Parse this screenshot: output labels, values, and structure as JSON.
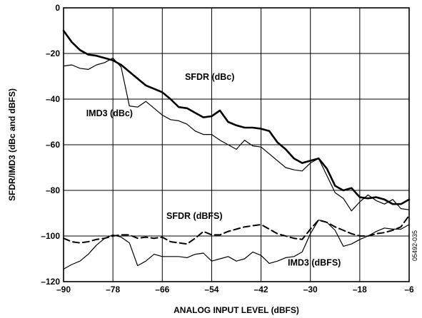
{
  "chart_data": {
    "type": "line",
    "title": "",
    "xlabel": "ANALOG INPUT LEVEL (dBFS)",
    "ylabel": "SFDR/IMD3 (dBc and dBFS)",
    "xlim": [
      -90,
      -6
    ],
    "ylim": [
      -120,
      0
    ],
    "x_ticks": [
      -90,
      -78,
      -66,
      -54,
      -42,
      -30,
      -18,
      -6
    ],
    "y_ticks": [
      0,
      -20,
      -40,
      -60,
      -80,
      -100,
      -120
    ],
    "grid": true,
    "figure_id": "05492-035",
    "series": [
      {
        "name": "SFDR (dBc)",
        "style": "thick-solid",
        "x": [
          -90,
          -88,
          -86,
          -84,
          -82,
          -80,
          -78,
          -76,
          -74,
          -72,
          -70,
          -68,
          -66,
          -64,
          -62,
          -60,
          -58,
          -56,
          -54,
          -52,
          -50,
          -48,
          -46,
          -44,
          -42,
          -40,
          -38,
          -36,
          -34,
          -32,
          -30,
          -28,
          -26,
          -24,
          -22,
          -20,
          -18,
          -16,
          -14,
          -12,
          -10,
          -8,
          -6
        ],
        "y": [
          -10,
          -15,
          -18.5,
          -20.5,
          -21,
          -22,
          -23,
          -25,
          -28,
          -31,
          -34,
          -35.5,
          -37,
          -40,
          -43.5,
          -44,
          -46,
          -48,
          -47.5,
          -45,
          -50,
          -51.5,
          -52.5,
          -52.5,
          -53,
          -54,
          -59,
          -62,
          -66,
          -68,
          -67,
          -66,
          -70.5,
          -78,
          -80,
          -79,
          -83,
          -83.5,
          -83,
          -84,
          -86,
          -86,
          -84
        ]
      },
      {
        "name": "IMD3 (dBc)",
        "style": "thin-solid",
        "x": [
          -90,
          -88,
          -86,
          -84,
          -82,
          -80,
          -78,
          -76,
          -74,
          -72,
          -70,
          -68,
          -66,
          -64,
          -62,
          -60,
          -58,
          -56,
          -54,
          -52,
          -50,
          -48,
          -46,
          -44,
          -42,
          -40,
          -38,
          -36,
          -34,
          -32,
          -30,
          -28,
          -26,
          -24,
          -22,
          -20,
          -18,
          -16,
          -14,
          -12,
          -10,
          -8,
          -6
        ],
        "y": [
          -25.5,
          -25,
          -26.5,
          -27,
          -25,
          -24,
          -22,
          -26,
          -43,
          -43.5,
          -41,
          -44,
          -47,
          -49,
          -49.5,
          -51,
          -54,
          -55.5,
          -55.5,
          -58,
          -60,
          -62,
          -58,
          -60.5,
          -61,
          -64,
          -67,
          -70,
          -71,
          -71.5,
          -68,
          -66,
          -73.5,
          -81,
          -83.5,
          -89,
          -85,
          -82,
          -84.5,
          -86,
          -84,
          -88,
          -88.5
        ]
      },
      {
        "name": "SFDR (dBFS)",
        "style": "dashed",
        "x": [
          -90,
          -88,
          -86,
          -84,
          -82,
          -80,
          -78,
          -76,
          -74,
          -72,
          -70,
          -68,
          -66,
          -64,
          -62,
          -60,
          -58,
          -56,
          -54,
          -52,
          -50,
          -48,
          -46,
          -44,
          -42,
          -40,
          -38,
          -36,
          -34,
          -32,
          -30,
          -28,
          -26,
          -24,
          -22,
          -20,
          -18,
          -16,
          -14,
          -12,
          -10,
          -8,
          -6
        ],
        "y": [
          -101,
          -102.5,
          -103,
          -102.5,
          -101.5,
          -101,
          -100,
          -99.5,
          -99.5,
          -101,
          -100.5,
          -101,
          -100.5,
          -102.5,
          -103,
          -103.5,
          -101,
          -98,
          -99.5,
          -99.5,
          -98,
          -97,
          -96,
          -95.5,
          -95,
          -97,
          -99,
          -100,
          -101,
          -101.5,
          -97,
          -93,
          -94,
          -96,
          -97.5,
          -99,
          -100,
          -100,
          -99,
          -98.5,
          -97.5,
          -96,
          -91
        ]
      },
      {
        "name": "IMD3 (dBFS)",
        "style": "thin-solid",
        "x": [
          -90,
          -88,
          -86,
          -84,
          -82,
          -80,
          -78,
          -76,
          -74,
          -72,
          -70,
          -68,
          -66,
          -64,
          -62,
          -60,
          -58,
          -56,
          -54,
          -52,
          -50,
          -48,
          -46,
          -44,
          -42,
          -40,
          -38,
          -36,
          -34,
          -32,
          -30,
          -28,
          -26,
          -24,
          -22,
          -20,
          -18,
          -16,
          -14,
          -12,
          -10,
          -8,
          -6
        ],
        "y": [
          -114.5,
          -112.5,
          -111,
          -108,
          -104,
          -101,
          -99.5,
          -100.5,
          -103,
          -113,
          -111,
          -108,
          -109,
          -109,
          -109,
          -109.5,
          -108,
          -107.5,
          -111,
          -110,
          -109,
          -111,
          -110,
          -107,
          -108.5,
          -112,
          -111,
          -109.5,
          -109,
          -107,
          -99,
          -93,
          -94,
          -97.5,
          -104.5,
          -103.5,
          -101.5,
          -100,
          -98,
          -96.5,
          -97,
          -97,
          -95
        ]
      }
    ]
  }
}
